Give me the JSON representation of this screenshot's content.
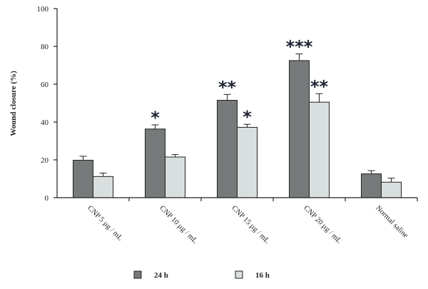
{
  "chart_data": {
    "type": "bar",
    "title": "",
    "xlabel": "",
    "ylabel": "Wound closure (%)",
    "ylim": [
      0,
      100
    ],
    "yticks": [
      0,
      20,
      40,
      60,
      80,
      100
    ],
    "grid": false,
    "legend_position": "bottom",
    "categories": [
      "CNP 5 µg / mL",
      "CNP 10 µg / mL",
      "CNP 15 µg / mL",
      "CNP 20 µg / mL",
      "Normal saline"
    ],
    "series": [
      {
        "name": "24 h",
        "color": "#777a7a",
        "values": [
          19.8,
          36.3,
          51.5,
          72.5,
          12.6
        ],
        "errors": [
          2.1,
          2.2,
          3.1,
          3.5,
          1.7
        ],
        "significance": [
          "",
          "*",
          "**",
          "***",
          ""
        ]
      },
      {
        "name": "16 h",
        "color": "#d9dede",
        "values": [
          11.2,
          21.5,
          37.2,
          50.5,
          8.2
        ],
        "errors": [
          1.8,
          1.3,
          1.6,
          4.5,
          2.1
        ],
        "significance": [
          "",
          "",
          "*",
          "**",
          ""
        ]
      }
    ]
  }
}
